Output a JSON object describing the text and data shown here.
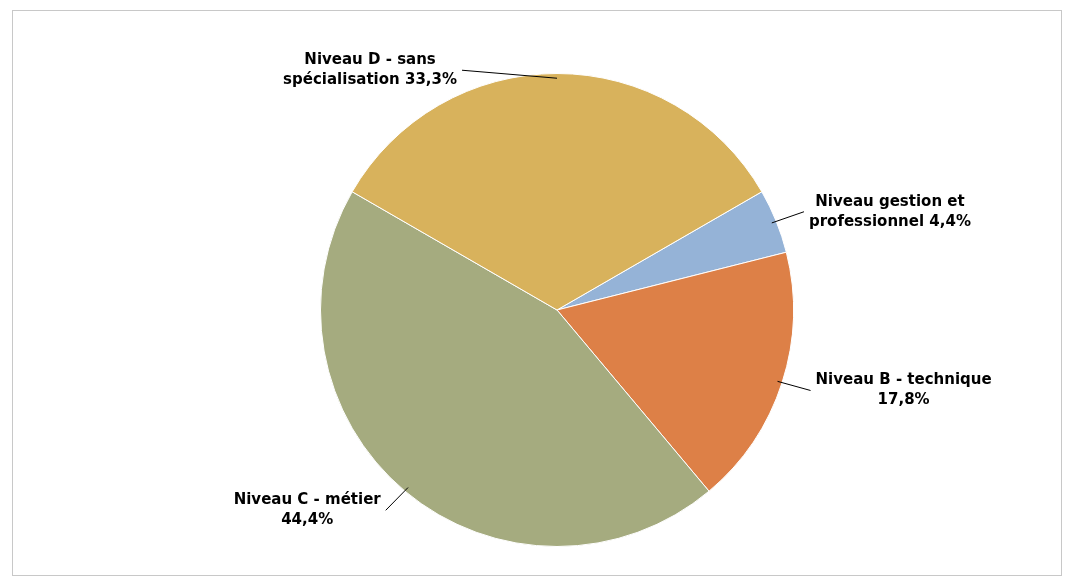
{
  "chart_data": {
    "type": "pie",
    "categories": [
      "Niveau gestion et professionnel",
      "Niveau B - technique",
      "Niveau C - métier",
      "Niveau D - sans spécialisation"
    ],
    "values": [
      4.4,
      17.8,
      44.4,
      33.3
    ],
    "colors": [
      "#95b3d7",
      "#dd8047",
      "#a5ab7f",
      "#d8b25c"
    ],
    "value_labels": [
      "4,4%",
      "17,8%",
      "44,4%",
      "33,3%"
    ],
    "legend": false
  }
}
